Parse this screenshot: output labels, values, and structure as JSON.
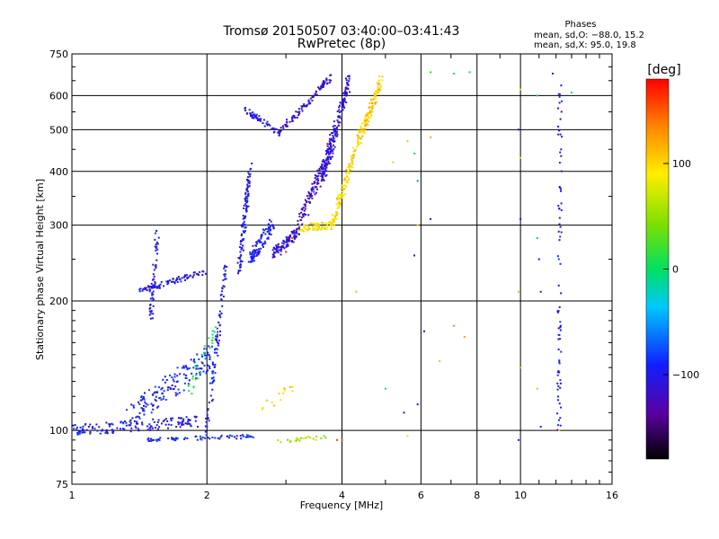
{
  "chart_data": {
    "type": "scatter",
    "title_line1": "Tromsø 20150507 03:40:00–03:41:43",
    "title_line2": "RwPretec (8p)",
    "xlabel": "Frequency [MHz]",
    "ylabel": "Stationary phase Virtual Height [km]",
    "x_scale": "log",
    "y_scale": "log",
    "xlim": [
      1,
      16
    ],
    "ylim": [
      75,
      750
    ],
    "x_ticks": [
      1,
      2,
      4,
      6,
      8,
      10,
      16
    ],
    "x_tick_labels": [
      "1",
      "2",
      "4",
      "6",
      "8",
      "10",
      "16"
    ],
    "y_ticks": [
      75,
      100,
      200,
      300,
      400,
      500,
      600,
      750
    ],
    "y_tick_labels": [
      "75",
      "100",
      "200",
      "300",
      "400",
      "500",
      "600",
      "750"
    ],
    "grid": true,
    "phase_legend": {
      "title": "Phases",
      "line_o": "mean, sd,O: −88.0, 15.2",
      "line_x": "mean, sd,X:  95.0, 19.8"
    },
    "colorbar": {
      "label": "[deg]",
      "range": [
        -180,
        180
      ],
      "ticks": [
        100,
        0,
        -100
      ],
      "tick_labels": [
        "100",
        "0",
        "−100"
      ]
    },
    "traces": [
      {
        "x0": 1.0,
        "x1": 1.9,
        "y0": 100,
        "y1": 105,
        "phase": -100,
        "n": 140,
        "spread": 0.03
      },
      {
        "x0": 1.3,
        "x1": 2.05,
        "y0": 105,
        "y1": 150,
        "phase": -95,
        "n": 160,
        "spread": 0.07
      },
      {
        "x0": 1.45,
        "x1": 2.6,
        "y0": 95,
        "y1": 97,
        "phase": -90,
        "n": 70,
        "spread": 0.01
      },
      {
        "x0": 2.0,
        "x1": 2.2,
        "y0": 100,
        "y1": 240,
        "phase": -100,
        "n": 90,
        "spread": 0.04
      },
      {
        "x0": 1.4,
        "x1": 2.0,
        "y0": 210,
        "y1": 235,
        "phase": -105,
        "n": 90,
        "spread": 0.015
      },
      {
        "x0": 1.5,
        "x1": 1.55,
        "y0": 180,
        "y1": 290,
        "phase": -100,
        "n": 50,
        "spread": 0.01
      },
      {
        "x0": 2.35,
        "x1": 2.5,
        "y0": 230,
        "y1": 410,
        "phase": -100,
        "n": 110,
        "spread": 0.03
      },
      {
        "x0": 2.5,
        "x1": 2.8,
        "y0": 250,
        "y1": 300,
        "phase": -100,
        "n": 100,
        "spread": 0.04
      },
      {
        "x0": 2.8,
        "x1": 3.2,
        "y0": 255,
        "y1": 290,
        "phase": -110,
        "n": 90,
        "spread": 0.03
      },
      {
        "x0": 3.2,
        "x1": 3.8,
        "y0": 300,
        "y1": 460,
        "phase": -115,
        "n": 120,
        "spread": 0.05
      },
      {
        "x0": 3.6,
        "x1": 4.15,
        "y0": 380,
        "y1": 650,
        "phase": -110,
        "n": 170,
        "spread": 0.05
      },
      {
        "x0": 2.4,
        "x1": 2.9,
        "y0": 560,
        "y1": 490,
        "phase": -100,
        "n": 60,
        "spread": 0.015
      },
      {
        "x0": 2.9,
        "x1": 3.4,
        "y0": 500,
        "y1": 580,
        "phase": -115,
        "n": 50,
        "spread": 0.02
      },
      {
        "x0": 3.4,
        "x1": 3.75,
        "y0": 590,
        "y1": 660,
        "phase": -115,
        "n": 45,
        "spread": 0.02
      },
      {
        "x0": 3.2,
        "x1": 3.8,
        "y0": 295,
        "y1": 300,
        "phase": 90,
        "n": 70,
        "spread": 0.02
      },
      {
        "x0": 3.8,
        "x1": 4.35,
        "y0": 300,
        "y1": 470,
        "phase": 100,
        "n": 110,
        "spread": 0.03
      },
      {
        "x0": 4.35,
        "x1": 4.9,
        "y0": 470,
        "y1": 650,
        "phase": 105,
        "n": 110,
        "spread": 0.03
      },
      {
        "x0": 2.6,
        "x1": 3.2,
        "y0": 110,
        "y1": 130,
        "phase": 100,
        "n": 14,
        "spread": 0.03
      },
      {
        "x0": 2.9,
        "x1": 3.7,
        "y0": 94,
        "y1": 97,
        "phase": 60,
        "n": 24,
        "spread": 0.01
      },
      {
        "x0": 1.8,
        "x1": 2.1,
        "y0": 120,
        "y1": 175,
        "phase": 10,
        "n": 28,
        "spread": 0.06
      },
      {
        "x0": 12.2,
        "x1": 12.25,
        "y0": 100,
        "y1": 660,
        "phase": -100,
        "n": 80,
        "spread": 0.003
      }
    ],
    "scatter_points": [
      [
        6.3,
        680,
        20
      ],
      [
        7.1,
        675,
        10
      ],
      [
        7.7,
        680,
        0
      ],
      [
        10.0,
        620,
        100
      ],
      [
        11.8,
        675,
        -110
      ],
      [
        13.0,
        610,
        -10
      ],
      [
        10.9,
        600,
        10
      ],
      [
        5.6,
        470,
        110
      ],
      [
        5.8,
        440,
        20
      ],
      [
        5.2,
        420,
        70
      ],
      [
        6.3,
        480,
        120
      ],
      [
        5.9,
        380,
        -60
      ],
      [
        9.9,
        500,
        -110
      ],
      [
        10.0,
        430,
        100
      ],
      [
        10.0,
        310,
        -110
      ],
      [
        5.9,
        300,
        110
      ],
      [
        6.3,
        310,
        -110
      ],
      [
        5.8,
        255,
        -140
      ],
      [
        9.9,
        210,
        110
      ],
      [
        10.9,
        280,
        0
      ],
      [
        11.0,
        250,
        -110
      ],
      [
        11.1,
        210,
        -100
      ],
      [
        6.1,
        170,
        -120
      ],
      [
        7.1,
        175,
        30
      ],
      [
        7.5,
        165,
        120
      ],
      [
        6.6,
        145,
        110
      ],
      [
        5.0,
        125,
        0
      ],
      [
        5.9,
        115,
        -120
      ],
      [
        10.0,
        140,
        50
      ],
      [
        10.9,
        125,
        110
      ],
      [
        11.1,
        102,
        -110
      ],
      [
        12.2,
        100,
        110
      ],
      [
        9.9,
        95,
        -110
      ],
      [
        4.0,
        95,
        150
      ],
      [
        5.6,
        97,
        100
      ],
      [
        5.5,
        110,
        -120
      ],
      [
        3.1,
        280,
        160
      ],
      [
        3.0,
        260,
        170
      ],
      [
        3.9,
        95,
        160
      ],
      [
        4.3,
        210,
        110
      ],
      [
        3.5,
        95,
        80
      ]
    ]
  }
}
